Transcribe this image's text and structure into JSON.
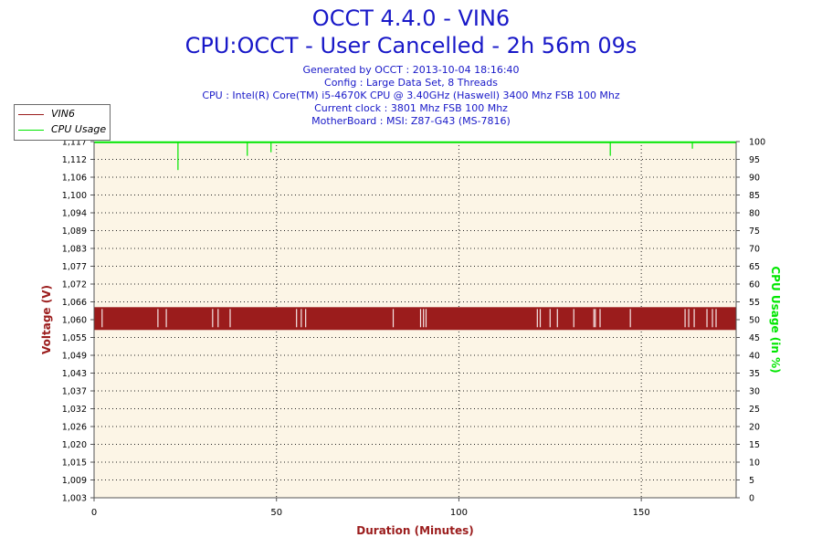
{
  "title": "OCCT 4.4.0 - VIN6",
  "subtitle": "CPU:OCCT - User Cancelled - 2h 56m 09s",
  "info_lines": [
    "Generated by OCCT : 2013-10-04 18:16:40",
    "Config : Large Data Set, 8 Threads",
    "CPU : Intel(R) Core(TM) i5-4670K CPU @ 3.40GHz (Haswell) 3400 Mhz FSB 100 Mhz",
    "Current clock : 3801 Mhz FSB 100 Mhz",
    "MotherBoard : MSI: Z87-G43 (MS-7816)"
  ],
  "colors": {
    "title": "#1818c8",
    "voltage": "#9b1c1c",
    "cpu": "#00e600",
    "plot_bg": "#fcf5e6",
    "axis_label_left": "#9b1c1c",
    "axis_label_right": "#00e600",
    "axis_label_x": "#9b1c1c"
  },
  "chart_data": {
    "type": "line",
    "xlabel": "Duration (Minutes)",
    "ylabel": "Voltage (V)",
    "y2label": "CPU Usage (in %)",
    "xlim": [
      0,
      176
    ],
    "ylim": [
      1.003,
      1.117
    ],
    "y2lim": [
      0,
      100
    ],
    "x_ticks": [
      "0",
      "50",
      "100",
      "150"
    ],
    "x_tick_values": [
      0,
      50,
      100,
      150
    ],
    "y_ticks": [
      "1,003",
      "1,009",
      "1,015",
      "1,020",
      "1,026",
      "1,032",
      "1,037",
      "1,043",
      "1,049",
      "1,055",
      "1,060",
      "1,066",
      "1,072",
      "1,077",
      "1,083",
      "1,089",
      "1,094",
      "1,100",
      "1,106",
      "1,112",
      "1,117"
    ],
    "y2_ticks": [
      "0",
      "5",
      "10",
      "15",
      "20",
      "25",
      "30",
      "35",
      "40",
      "45",
      "50",
      "55",
      "60",
      "65",
      "70",
      "75",
      "80",
      "85",
      "90",
      "95",
      "100"
    ],
    "grid": true,
    "legend_position": "top-left",
    "series": [
      {
        "name": "VIN6",
        "axis": "left",
        "low": 1.0567,
        "high": 1.064,
        "gaps_minutes": [
          2.2,
          17.5,
          19.8,
          32.5,
          34.0,
          37.3,
          55.5,
          56.8,
          58.0,
          82.0,
          89.5,
          90.3,
          91.0,
          121.5,
          122.3,
          125.0,
          127.0,
          131.5,
          137.0,
          137.4,
          138.7,
          147.0,
          162.0,
          163.0,
          164.5,
          168.0,
          169.5,
          170.5
        ]
      },
      {
        "name": "CPU Usage",
        "axis": "right",
        "baseline": 99.8,
        "dips": [
          {
            "x": 23.0,
            "value": 92
          },
          {
            "x": 42.0,
            "value": 96
          },
          {
            "x": 48.5,
            "value": 97
          },
          {
            "x": 141.5,
            "value": 96
          },
          {
            "x": 164.0,
            "value": 98
          }
        ]
      }
    ]
  }
}
